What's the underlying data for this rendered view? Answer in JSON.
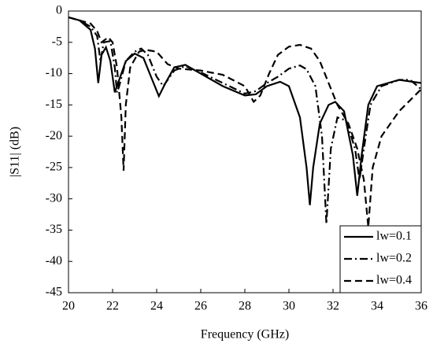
{
  "chart_data": {
    "type": "line",
    "x_label": "Frequency (GHz)",
    "y_label": "|S11| (dB)",
    "xlim": [
      20,
      36
    ],
    "xticks": [
      20,
      22,
      24,
      26,
      28,
      30,
      32,
      34,
      36
    ],
    "ylim": [
      -45,
      0
    ],
    "yticks": [
      0,
      -5,
      -10,
      -15,
      -20,
      -25,
      -30,
      -35,
      -40,
      -45
    ],
    "legend": "lower right",
    "series": [
      {
        "name": "lw=0.1",
        "color": "#000000",
        "dash": "solid",
        "x": [
          20,
          20.5,
          21,
          21.2,
          21.35,
          21.5,
          21.7,
          21.9,
          22.1,
          22.3,
          22.6,
          23,
          23.4,
          23.8,
          24.1,
          24.4,
          24.8,
          25.3,
          26,
          27,
          28,
          28.5,
          29,
          29.6,
          30,
          30.5,
          30.8,
          30.95,
          31.1,
          31.4,
          31.8,
          32.1,
          32.5,
          32.9,
          33.1,
          33.3,
          33.6,
          34,
          35,
          36
        ],
        "values": [
          -1,
          -1.5,
          -3,
          -6,
          -11.5,
          -7,
          -5.8,
          -8,
          -13,
          -11,
          -8,
          -6.8,
          -7.5,
          -11,
          -13.6,
          -11.5,
          -9,
          -8.6,
          -10,
          -12,
          -13.5,
          -13.3,
          -12,
          -11.3,
          -12,
          -17,
          -25,
          -31,
          -25,
          -18,
          -15,
          -14.5,
          -16,
          -23,
          -29.5,
          -23,
          -15,
          -12,
          -11,
          -11.5
        ]
      },
      {
        "name": "lw=0.2",
        "color": "#000000",
        "dash": "dashdot",
        "x": [
          20,
          20.5,
          21,
          21.3,
          21.45,
          21.6,
          21.9,
          22.1,
          22.2,
          22.3,
          22.6,
          23,
          23.3,
          23.6,
          24,
          24.3,
          24.8,
          25.3,
          26,
          27,
          28,
          28.5,
          29,
          29.5,
          30,
          30.5,
          30.8,
          31.2,
          31.5,
          31.7,
          31.9,
          32.2,
          32.6,
          33,
          33.2,
          33.4,
          33.7,
          34.2,
          35,
          35.5,
          36
        ],
        "values": [
          -1,
          -1.5,
          -2.5,
          -4,
          -8,
          -5,
          -4.8,
          -9,
          -13,
          -12,
          -8,
          -6.5,
          -6,
          -7,
          -10.5,
          -12,
          -9.5,
          -8.8,
          -9.8,
          -11.5,
          -13.2,
          -12.8,
          -11.5,
          -10.5,
          -9.2,
          -8.7,
          -9.3,
          -12,
          -20,
          -34,
          -22,
          -17,
          -17.5,
          -22,
          -27,
          -22,
          -15,
          -12,
          -11,
          -11,
          -12.5
        ]
      },
      {
        "name": "lw=0.4",
        "color": "#000000",
        "dash": "dashed",
        "x": [
          20,
          20.5,
          21,
          21.3,
          21.5,
          21.8,
          22,
          22.2,
          22.4,
          22.5,
          22.6,
          22.8,
          23.2,
          23.5,
          24,
          24.5,
          25,
          26,
          27,
          28,
          28.4,
          28.7,
          29.1,
          29.5,
          30,
          30.5,
          31,
          31.4,
          31.8,
          32.2,
          32.7,
          33.1,
          33.4,
          33.6,
          33.8,
          34.2,
          35,
          36
        ],
        "values": [
          -1,
          -1.5,
          -2,
          -3.2,
          -5,
          -4.2,
          -5,
          -9,
          -17,
          -25.5,
          -15,
          -9,
          -6.5,
          -6.2,
          -6.5,
          -8.5,
          -9.2,
          -9.5,
          -10.2,
          -12,
          -14.5,
          -13.5,
          -10,
          -7,
          -5.7,
          -5.4,
          -6,
          -8,
          -11.5,
          -15,
          -18,
          -22,
          -27,
          -34.5,
          -25,
          -20,
          -16,
          -12.5
        ]
      }
    ]
  }
}
